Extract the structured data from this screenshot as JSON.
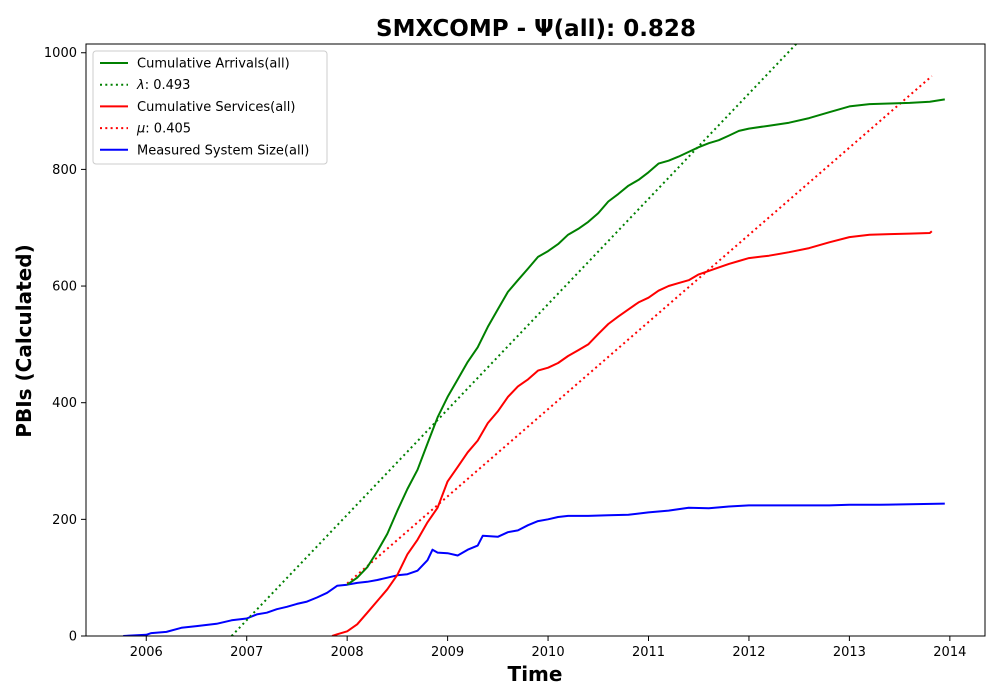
{
  "chart_data": {
    "type": "line",
    "title": "SMXCOMP -  Ψ(all): 0.828",
    "xlabel": "Time",
    "ylabel": "PBIs (Calculated)",
    "xlim": [
      2005.4,
      2014.35
    ],
    "ylim": [
      0,
      1015
    ],
    "x_ticks": [
      "2006",
      "2007",
      "2008",
      "2009",
      "2010",
      "2011",
      "2012",
      "2013",
      "2014"
    ],
    "y_ticks": [
      "0",
      "200",
      "400",
      "600",
      "800",
      "1000"
    ],
    "grid": false,
    "legend_position": "upper-left",
    "series": [
      {
        "name": "Cumulative Arrivals(all)",
        "color": "#008000",
        "style": "solid",
        "points": [
          [
            2008.0,
            88
          ],
          [
            2008.1,
            100
          ],
          [
            2008.2,
            118
          ],
          [
            2008.3,
            145
          ],
          [
            2008.4,
            175
          ],
          [
            2008.5,
            215
          ],
          [
            2008.6,
            252
          ],
          [
            2008.7,
            285
          ],
          [
            2008.8,
            330
          ],
          [
            2008.9,
            375
          ],
          [
            2009.0,
            410
          ],
          [
            2009.1,
            440
          ],
          [
            2009.2,
            470
          ],
          [
            2009.3,
            495
          ],
          [
            2009.4,
            530
          ],
          [
            2009.5,
            560
          ],
          [
            2009.6,
            590
          ],
          [
            2009.7,
            610
          ],
          [
            2009.8,
            630
          ],
          [
            2009.9,
            650
          ],
          [
            2010.0,
            660
          ],
          [
            2010.1,
            672
          ],
          [
            2010.2,
            688
          ],
          [
            2010.3,
            698
          ],
          [
            2010.4,
            710
          ],
          [
            2010.5,
            725
          ],
          [
            2010.6,
            745
          ],
          [
            2010.7,
            758
          ],
          [
            2010.8,
            772
          ],
          [
            2010.9,
            782
          ],
          [
            2011.0,
            795
          ],
          [
            2011.1,
            810
          ],
          [
            2011.2,
            815
          ],
          [
            2011.3,
            822
          ],
          [
            2011.4,
            830
          ],
          [
            2011.5,
            838
          ],
          [
            2011.6,
            845
          ],
          [
            2011.7,
            850
          ],
          [
            2011.8,
            858
          ],
          [
            2011.9,
            866
          ],
          [
            2012.0,
            870
          ],
          [
            2012.2,
            875
          ],
          [
            2012.4,
            880
          ],
          [
            2012.6,
            888
          ],
          [
            2012.8,
            898
          ],
          [
            2013.0,
            908
          ],
          [
            2013.2,
            912
          ],
          [
            2013.4,
            913
          ],
          [
            2013.6,
            914
          ],
          [
            2013.8,
            916
          ],
          [
            2013.95,
            920
          ]
        ]
      },
      {
        "name": "λ: 0.493",
        "label_greek": "λ",
        "label_value": ": 0.493",
        "color": "#008000",
        "style": "dotted",
        "points": [
          [
            2006.85,
            0
          ],
          [
            2012.47,
            1015
          ]
        ]
      },
      {
        "name": "Cumulative Services(all)",
        "color": "#ff0000",
        "style": "solid",
        "points": [
          [
            2007.85,
            0
          ],
          [
            2007.9,
            3
          ],
          [
            2008.0,
            8
          ],
          [
            2008.1,
            20
          ],
          [
            2008.2,
            40
          ],
          [
            2008.3,
            60
          ],
          [
            2008.4,
            80
          ],
          [
            2008.5,
            105
          ],
          [
            2008.6,
            140
          ],
          [
            2008.7,
            165
          ],
          [
            2008.8,
            195
          ],
          [
            2008.9,
            220
          ],
          [
            2009.0,
            265
          ],
          [
            2009.1,
            290
          ],
          [
            2009.2,
            315
          ],
          [
            2009.3,
            335
          ],
          [
            2009.4,
            365
          ],
          [
            2009.5,
            385
          ],
          [
            2009.6,
            410
          ],
          [
            2009.7,
            428
          ],
          [
            2009.8,
            440
          ],
          [
            2009.9,
            455
          ],
          [
            2010.0,
            460
          ],
          [
            2010.1,
            468
          ],
          [
            2010.2,
            480
          ],
          [
            2010.3,
            490
          ],
          [
            2010.4,
            500
          ],
          [
            2010.5,
            518
          ],
          [
            2010.6,
            535
          ],
          [
            2010.7,
            548
          ],
          [
            2010.8,
            560
          ],
          [
            2010.9,
            572
          ],
          [
            2011.0,
            580
          ],
          [
            2011.1,
            592
          ],
          [
            2011.2,
            600
          ],
          [
            2011.3,
            605
          ],
          [
            2011.4,
            610
          ],
          [
            2011.5,
            620
          ],
          [
            2011.6,
            626
          ],
          [
            2011.7,
            632
          ],
          [
            2011.8,
            638
          ],
          [
            2011.9,
            643
          ],
          [
            2012.0,
            648
          ],
          [
            2012.2,
            652
          ],
          [
            2012.4,
            658
          ],
          [
            2012.6,
            665
          ],
          [
            2012.8,
            675
          ],
          [
            2013.0,
            684
          ],
          [
            2013.2,
            688
          ],
          [
            2013.4,
            689
          ],
          [
            2013.6,
            690
          ],
          [
            2013.8,
            691
          ],
          [
            2013.82,
            694
          ]
        ]
      },
      {
        "name": "μ: 0.405",
        "label_greek": "μ",
        "label_value": ": 0.405",
        "color": "#ff0000",
        "style": "dotted",
        "points": [
          [
            2008.0,
            90
          ],
          [
            2013.82,
            960
          ]
        ]
      },
      {
        "name": "Measured System Size(all)",
        "color": "#0000ff",
        "style": "solid",
        "points": [
          [
            2005.77,
            0
          ],
          [
            2006.0,
            2
          ],
          [
            2006.05,
            5
          ],
          [
            2006.2,
            7
          ],
          [
            2006.35,
            14
          ],
          [
            2006.5,
            17
          ],
          [
            2006.7,
            21
          ],
          [
            2006.85,
            27
          ],
          [
            2007.0,
            30
          ],
          [
            2007.1,
            37
          ],
          [
            2007.2,
            40
          ],
          [
            2007.3,
            46
          ],
          [
            2007.4,
            50
          ],
          [
            2007.5,
            55
          ],
          [
            2007.6,
            59
          ],
          [
            2007.7,
            66
          ],
          [
            2007.8,
            74
          ],
          [
            2007.9,
            86
          ],
          [
            2008.0,
            88
          ],
          [
            2008.1,
            91
          ],
          [
            2008.2,
            93
          ],
          [
            2008.3,
            96
          ],
          [
            2008.4,
            100
          ],
          [
            2008.5,
            104
          ],
          [
            2008.6,
            106
          ],
          [
            2008.7,
            112
          ],
          [
            2008.8,
            130
          ],
          [
            2008.85,
            148
          ],
          [
            2008.9,
            143
          ],
          [
            2009.0,
            142
          ],
          [
            2009.1,
            138
          ],
          [
            2009.2,
            148
          ],
          [
            2009.3,
            155
          ],
          [
            2009.35,
            172
          ],
          [
            2009.5,
            170
          ],
          [
            2009.6,
            178
          ],
          [
            2009.7,
            181
          ],
          [
            2009.8,
            190
          ],
          [
            2009.9,
            197
          ],
          [
            2010.0,
            200
          ],
          [
            2010.1,
            204
          ],
          [
            2010.2,
            206
          ],
          [
            2010.4,
            206
          ],
          [
            2010.6,
            207
          ],
          [
            2010.8,
            208
          ],
          [
            2011.0,
            212
          ],
          [
            2011.2,
            215
          ],
          [
            2011.4,
            220
          ],
          [
            2011.6,
            219
          ],
          [
            2011.8,
            222
          ],
          [
            2012.0,
            224
          ],
          [
            2012.2,
            224
          ],
          [
            2012.5,
            224
          ],
          [
            2012.8,
            224
          ],
          [
            2013.0,
            225
          ],
          [
            2013.3,
            225
          ],
          [
            2013.6,
            226
          ],
          [
            2013.95,
            227
          ]
        ]
      }
    ]
  }
}
